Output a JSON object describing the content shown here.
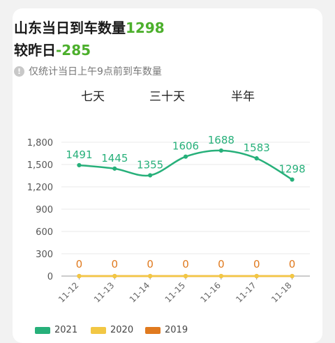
{
  "header": {
    "title_text": "山东当日到车数量",
    "title_count": "1298",
    "compare_text": "较昨日",
    "compare_delta": "-285",
    "note": "仅统计当日上午9点前到车数量"
  },
  "tabs": [
    {
      "label": "七天"
    },
    {
      "label": "三十天"
    },
    {
      "label": "半年"
    }
  ],
  "colors": {
    "series_2021": "#27b07a",
    "series_2020": "#f2c744",
    "series_2019": "#e07a1f",
    "highlight": "#4caf2c"
  },
  "chart_data": {
    "type": "line",
    "x": [
      "11-12",
      "11-13",
      "11-14",
      "11-15",
      "11-16",
      "11-17",
      "11-18"
    ],
    "yticks": [
      "0",
      "300",
      "600",
      "900",
      "1,200",
      "1,500",
      "1,800"
    ],
    "ylim": [
      0,
      1800
    ],
    "series": [
      {
        "name": "2021",
        "values": [
          1491,
          1445,
          1355,
          1606,
          1688,
          1583,
          1298
        ]
      },
      {
        "name": "2020",
        "values": [
          0,
          0,
          0,
          0,
          0,
          0,
          0
        ]
      },
      {
        "name": "2019",
        "values": [
          0,
          0,
          0,
          0,
          0,
          0,
          0
        ]
      }
    ],
    "grid": true,
    "legend_position": "bottom"
  }
}
